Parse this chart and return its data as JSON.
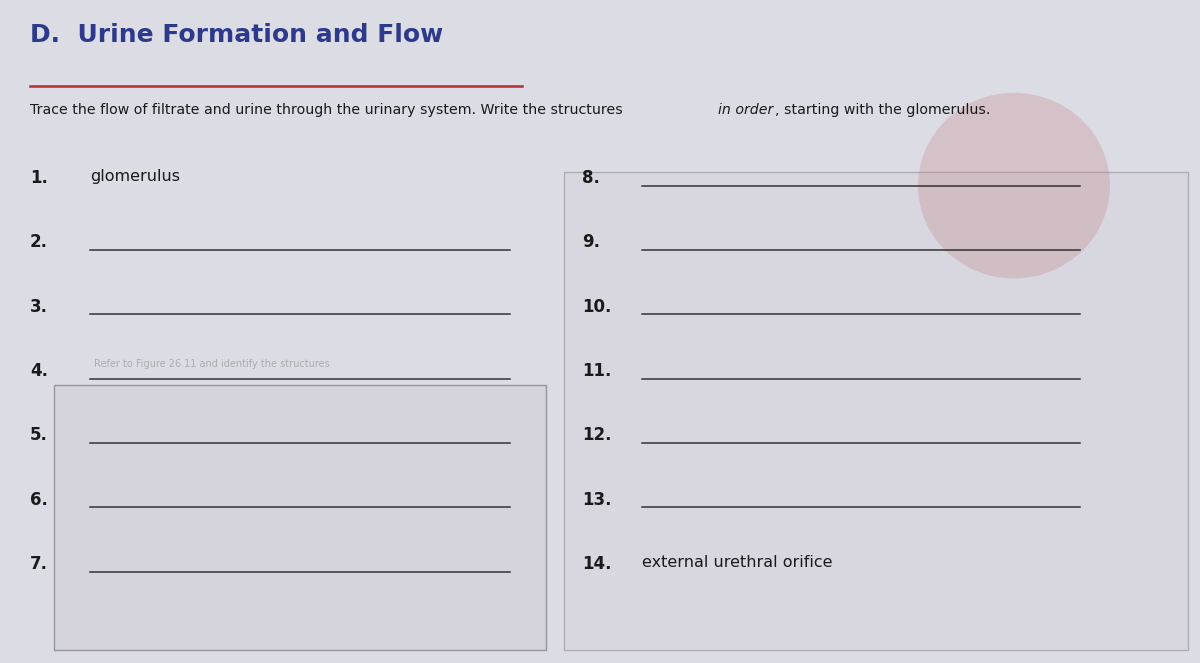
{
  "title": "D.  Urine Formation and Flow",
  "title_color": "#2d3a8c",
  "title_underline_color": "#b03030",
  "instruction_normal1": "Trace the flow of filtrate and urine through the urinary system. Write the structures ",
  "instruction_italic": "in order",
  "instruction_normal2": ", starting with the glomerulus.",
  "background_color": "#dcdce4",
  "left_items": [
    {
      "num": "1.",
      "text": "glomerulus",
      "has_line": false,
      "faint_text": ""
    },
    {
      "num": "2.",
      "text": "",
      "has_line": true,
      "faint_text": ""
    },
    {
      "num": "3.",
      "text": "",
      "has_line": true,
      "faint_text": ""
    },
    {
      "num": "4.",
      "text": "",
      "has_line": true,
      "faint_text": "Refer to Figure 26.11 and identify the structures"
    },
    {
      "num": "5.",
      "text": "",
      "has_line": true,
      "faint_text": ""
    },
    {
      "num": "6.",
      "text": "",
      "has_line": true,
      "faint_text": ""
    },
    {
      "num": "7.",
      "text": "",
      "has_line": true,
      "faint_text": ""
    }
  ],
  "right_items": [
    {
      "num": "8.",
      "text": "",
      "has_line": true
    },
    {
      "num": "9.",
      "text": "",
      "has_line": true
    },
    {
      "num": "10.",
      "text": "",
      "has_line": true
    },
    {
      "num": "11.",
      "text": "",
      "has_line": true
    },
    {
      "num": "12.",
      "text": "",
      "has_line": true
    },
    {
      "num": "13.",
      "text": "",
      "has_line": true
    },
    {
      "num": "14.",
      "text": "external urethral orifice",
      "has_line": false
    }
  ],
  "figsize": [
    12.0,
    6.63
  ],
  "dpi": 100
}
